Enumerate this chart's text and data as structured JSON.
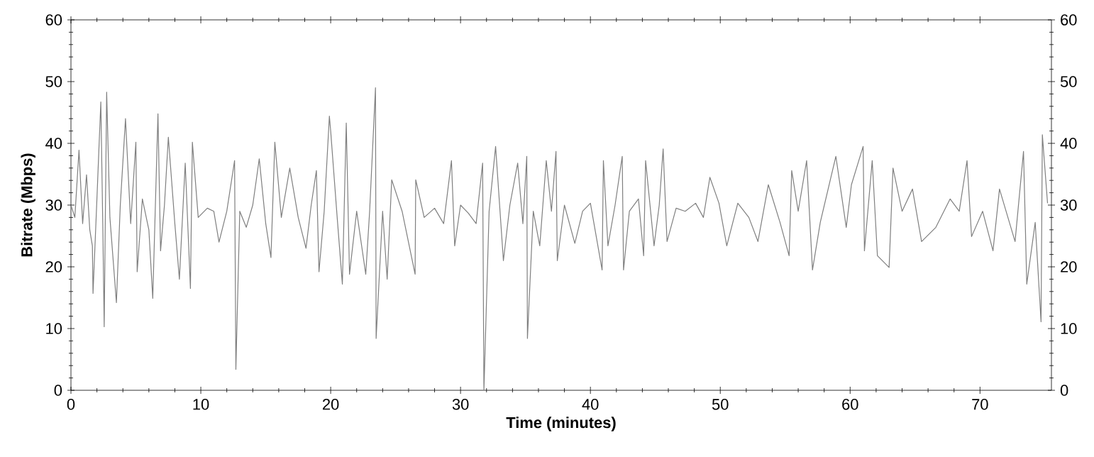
{
  "chart_data": {
    "type": "line",
    "xlabel": "Time (minutes)",
    "ylabel": "Bitrate (Mbps)",
    "series": [
      {
        "color": "#7f7f7f",
        "x": [
          0,
          0.3,
          0.62,
          0.9,
          1.2,
          1.45,
          1.65,
          1.7,
          2.0,
          2.3,
          2.45,
          2.56,
          2.75,
          3.0,
          3.5,
          3.8,
          4.2,
          4.6,
          5.0,
          5.1,
          5.5,
          6.0,
          6.3,
          6.7,
          6.9,
          7.2,
          7.5,
          8.0,
          8.35,
          8.8,
          9.2,
          9.35,
          9.8,
          10.5,
          11.0,
          11.4,
          12.0,
          12.6,
          12.7,
          13.0,
          13.5,
          14.0,
          14.5,
          15.0,
          15.4,
          15.7,
          16.2,
          16.85,
          17.5,
          18.1,
          18.5,
          18.9,
          19.1,
          19.5,
          19.9,
          20.0,
          20.5,
          20.9,
          21.2,
          21.45,
          22.0,
          22.7,
          23.0,
          23.45,
          23.5,
          24.0,
          24.35,
          24.7,
          25.5,
          26.5,
          26.55,
          27.2,
          28.0,
          28.7,
          29.3,
          29.55,
          30.0,
          30.6,
          31.2,
          31.7,
          31.8,
          32.2,
          32.7,
          33.3,
          33.8,
          34.4,
          34.8,
          35.1,
          35.15,
          35.6,
          36.1,
          36.6,
          37.0,
          37.35,
          37.45,
          38.0,
          38.8,
          39.4,
          40.0,
          40.9,
          41.0,
          41.35,
          41.9,
          42.45,
          42.55,
          43.0,
          43.7,
          44.1,
          44.25,
          44.9,
          45.3,
          45.6,
          45.9,
          46.6,
          47.3,
          48.1,
          48.7,
          49.2,
          49.9,
          50.5,
          51.35,
          52.2,
          52.9,
          53.7,
          54.6,
          55.3,
          55.5,
          56.0,
          56.65,
          57.1,
          57.7,
          58.9,
          59.7,
          60.1,
          61.0,
          61.1,
          61.7,
          62.1,
          63.0,
          63.3,
          64.0,
          64.8,
          65.5,
          66.6,
          67.7,
          68.4,
          69.0,
          69.35,
          70.2,
          71.0,
          71.5,
          72.7,
          73.35,
          73.6,
          74.25,
          74.7,
          74.8,
          75.2
        ],
        "values": [
          30,
          28,
          38.9,
          27,
          34.9,
          26,
          23.4,
          15.7,
          31,
          46.7,
          27,
          10.3,
          48.3,
          28,
          14.2,
          30,
          44,
          27,
          40.2,
          19.2,
          31,
          26,
          14.9,
          44.8,
          22.6,
          30,
          41,
          27,
          18,
          36.8,
          16.5,
          40.2,
          28,
          29.5,
          29,
          24,
          29,
          37.2,
          3.4,
          29,
          26.4,
          30,
          37.5,
          27,
          21.5,
          40.2,
          28,
          36,
          28,
          23,
          30,
          35.6,
          19.2,
          29,
          44.4,
          42,
          28,
          17.2,
          43.3,
          18.8,
          29,
          18.8,
          29,
          49,
          8.4,
          29,
          18,
          34.1,
          29,
          18.8,
          34.1,
          28,
          29.5,
          27,
          37.2,
          23.4,
          30,
          28.7,
          27,
          36.8,
          0,
          29,
          39.5,
          21,
          30,
          36.8,
          27,
          37.9,
          8.4,
          29,
          23.4,
          37.2,
          29,
          38.7,
          21,
          30,
          23.8,
          29,
          30.3,
          19.5,
          37.2,
          23.4,
          30,
          37.9,
          19.5,
          29,
          31,
          21.8,
          37.2,
          23.4,
          30,
          39.1,
          24.1,
          29.5,
          29,
          30.3,
          28,
          34.5,
          30.3,
          23.4,
          30.3,
          28,
          24.1,
          33.3,
          27.2,
          21.8,
          35.6,
          29,
          37.2,
          19.5,
          27.2,
          37.9,
          26.4,
          33.3,
          39.5,
          22.6,
          37.2,
          21.8,
          19.9,
          36,
          29,
          32.6,
          24.1,
          26.4,
          31,
          29,
          37.2,
          24.9,
          29,
          22.6,
          32.6,
          24.1,
          38.7,
          17.2,
          27.2,
          11.1,
          41.4,
          30.3
        ]
      }
    ],
    "xlim": [
      0,
      75.5
    ],
    "xticks": [
      0,
      10,
      20,
      30,
      40,
      50,
      60,
      70
    ],
    "ylim": [
      0,
      60
    ],
    "yticks": [
      0,
      10,
      20,
      30,
      40,
      50,
      60
    ],
    "y2lim": [
      0,
      60
    ],
    "y2ticks": [
      0,
      10,
      20,
      30,
      40,
      50,
      60
    ],
    "grid": false,
    "marker": "none",
    "line_style": "solid"
  }
}
